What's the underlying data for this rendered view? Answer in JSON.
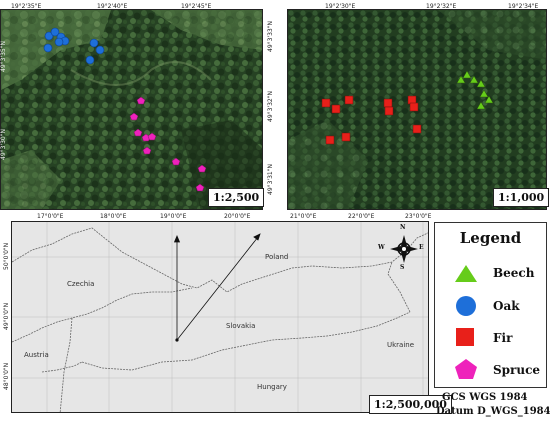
{
  "inset_left": {
    "scale": "1:2,500",
    "top_coords": [
      "19°2'35\"E",
      "19°2'40\"E",
      "19°2'45\"E"
    ],
    "left_coords": [
      "49°3'35\"N",
      "49°3'30\"N"
    ],
    "forest_color": "#2d4a2a"
  },
  "inset_right": {
    "scale": "1:1,000",
    "top_coords": [
      "19°2'30\"E",
      "19°2'32\"E",
      "19°2'34\"E"
    ],
    "right_coords": [
      "49°3'33\"N",
      "49°3'32\"N",
      "49°3'31\"N"
    ],
    "forest_color": "#2c472a"
  },
  "overview": {
    "scale": "1:2,500,000",
    "top_coords": [
      "17°0'0\"E",
      "18°0'0\"E",
      "19°0'0\"E",
      "20°0'0\"E",
      "21°0'0\"E",
      "22°0'0\"E",
      "23°0'0\"E"
    ],
    "left_coords": [
      "50°0'0\"N",
      "49°0'0\"N",
      "48°0'0\"N"
    ],
    "countries": {
      "poland": "Poland",
      "czechia": "Czechia",
      "slovakia": "Slovakia",
      "austria": "Austria",
      "hungary": "Hungary",
      "ukraine": "Ukraine"
    },
    "compass": {
      "n": "N",
      "s": "S",
      "e": "E",
      "w": "W"
    },
    "land_color": "#e6e6e6"
  },
  "legend": {
    "title": "Legend",
    "items": [
      {
        "label": "Beech",
        "shape": "triangle-icon",
        "color": "#66cc1a"
      },
      {
        "label": "Oak",
        "shape": "circle-icon",
        "color": "#1e6fd9"
      },
      {
        "label": "Fir",
        "shape": "square-icon",
        "color": "#e8201a"
      },
      {
        "label": "Spruce",
        "shape": "pentagon-icon",
        "color": "#ee22bb"
      }
    ]
  },
  "crs": {
    "line1": "GCS WGS 1984",
    "line2": "Datum D_WGS_1984"
  }
}
